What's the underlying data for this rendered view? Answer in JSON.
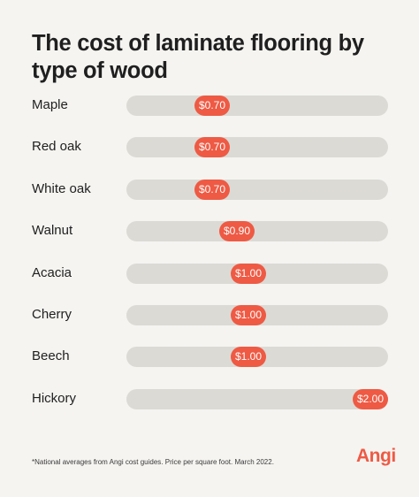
{
  "title": "The cost of laminate flooring by type of wood",
  "footnote": "*National averages from Angi cost guides. Price per square foot. March 2022.",
  "logo": "Angi",
  "colors": {
    "background": "#f5f4f1",
    "track": "#dcdad4",
    "accent": "#ee5a44"
  },
  "chart_data": {
    "type": "bar",
    "categories": [
      "Maple",
      "Red oak",
      "White oak",
      "Walnut",
      "Acacia",
      "Cherry",
      "Beech",
      "Hickory"
    ],
    "values": [
      0.7,
      0.7,
      0.7,
      0.9,
      1.0,
      1.0,
      1.0,
      2.0
    ],
    "value_labels": [
      "$0.70",
      "$0.70",
      "$0.70",
      "$0.90",
      "$1.00",
      "$1.00",
      "$1.00",
      "$2.00"
    ],
    "orientation": "horizontal",
    "xlim": [
      0,
      2
    ],
    "grid": false,
    "legend": "none"
  }
}
